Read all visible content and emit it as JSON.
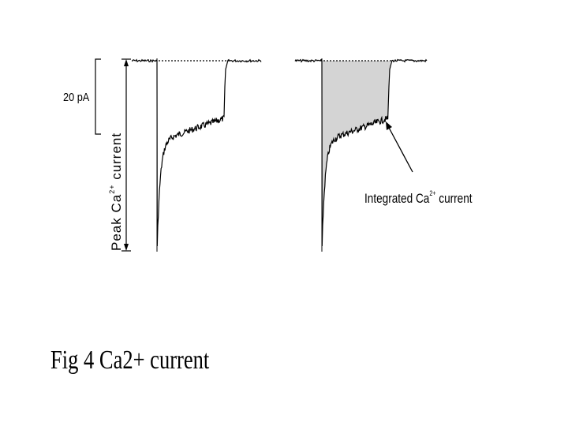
{
  "scale_bar": {
    "label": "20 pA"
  },
  "left_panel": {
    "axis_label": {
      "text": "Peak Ca",
      "superscript": "2+",
      "suffix": " current"
    }
  },
  "right_panel": {
    "annotation": {
      "text": "Integrated Ca",
      "superscript": "2+",
      "suffix": " current"
    }
  },
  "caption": "Fig 4 Ca2+ current"
}
